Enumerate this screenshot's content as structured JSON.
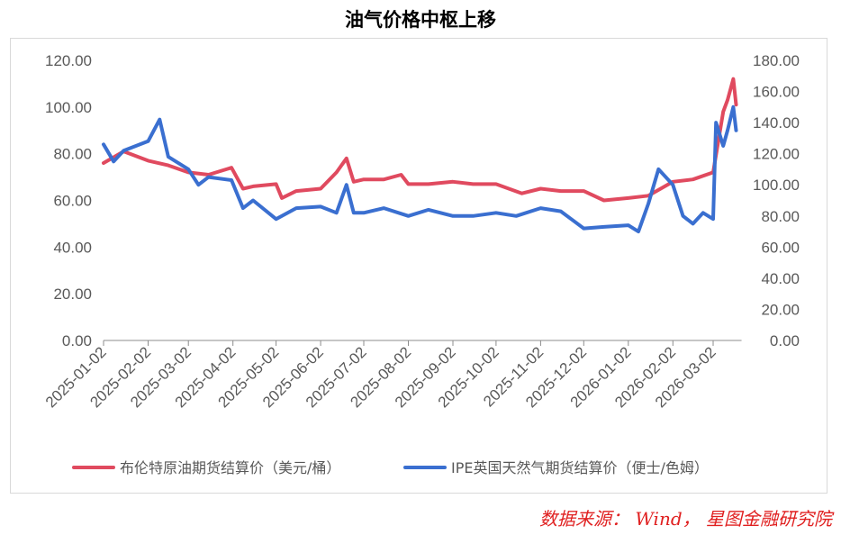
{
  "title": "油气价格中枢上移",
  "source_note": "数据来源： Wind， 星图金融研究院",
  "colors": {
    "series_1": "#e04a5f",
    "series_2": "#3a6fd0",
    "axis": "#8c8c8c",
    "text": "#595959"
  },
  "chart_data": {
    "type": "line",
    "title": "油气价格中枢上移",
    "x_tick_labels": [
      "2025-01-02",
      "2025-02-02",
      "2025-03-02",
      "2025-04-02",
      "2025-05-02",
      "2025-06-02",
      "2025-07-02",
      "2025-08-02",
      "2025-09-02",
      "2025-10-02",
      "2025-11-02",
      "2025-12-02",
      "2026-01-02",
      "2026-02-02",
      "2026-03-02"
    ],
    "y_left": {
      "ticks": [
        "0.00",
        "20.00",
        "40.00",
        "60.00",
        "80.00",
        "100.00",
        "120.00"
      ],
      "ylim": [
        0,
        120
      ]
    },
    "y_right": {
      "ticks": [
        "0.00",
        "20.00",
        "40.00",
        "60.00",
        "80.00",
        "100.00",
        "120.00",
        "140.00",
        "160.00",
        "180.00"
      ],
      "ylim": [
        0,
        180
      ]
    },
    "grid": false,
    "legend_position": "bottom",
    "series": [
      {
        "name": "布伦特原油期货结算价（美元/桶）",
        "axis": "left",
        "x": [
          "2025-01-02",
          "2025-01-16",
          "2025-02-02",
          "2025-02-16",
          "2025-03-02",
          "2025-03-16",
          "2025-04-01",
          "2025-04-09",
          "2025-04-16",
          "2025-05-02",
          "2025-05-06",
          "2025-05-16",
          "2025-06-02",
          "2025-06-13",
          "2025-06-20",
          "2025-06-25",
          "2025-07-02",
          "2025-07-16",
          "2025-07-28",
          "2025-08-02",
          "2025-08-16",
          "2025-09-02",
          "2025-09-16",
          "2025-10-02",
          "2025-10-20",
          "2025-11-02",
          "2025-11-16",
          "2025-12-02",
          "2025-12-16",
          "2026-01-02",
          "2026-01-16",
          "2026-02-02",
          "2026-02-16",
          "2026-03-02",
          "2026-03-09",
          "2026-03-12",
          "2026-03-16",
          "2026-03-18"
        ],
        "values": [
          76,
          81,
          77,
          75,
          72,
          71,
          74,
          65,
          66,
          67,
          61,
          64,
          65,
          72,
          78,
          68,
          69,
          69,
          71,
          67,
          67,
          68,
          67,
          67,
          63,
          65,
          64,
          64,
          60,
          61,
          62,
          68,
          69,
          72,
          98,
          103,
          112,
          101
        ]
      },
      {
        "name": "IPE英国天然气期货结算价（便士/色姆）",
        "axis": "right",
        "x": [
          "2025-01-02",
          "2025-01-09",
          "2025-01-16",
          "2025-02-02",
          "2025-02-10",
          "2025-02-16",
          "2025-03-02",
          "2025-03-09",
          "2025-03-16",
          "2025-04-01",
          "2025-04-09",
          "2025-04-16",
          "2025-05-02",
          "2025-05-16",
          "2025-06-02",
          "2025-06-13",
          "2025-06-20",
          "2025-06-25",
          "2025-07-02",
          "2025-07-16",
          "2025-08-02",
          "2025-08-16",
          "2025-09-02",
          "2025-09-16",
          "2025-10-02",
          "2025-10-16",
          "2025-11-02",
          "2025-11-16",
          "2025-12-02",
          "2025-12-16",
          "2026-01-02",
          "2026-01-09",
          "2026-01-16",
          "2026-01-23",
          "2026-02-02",
          "2026-02-09",
          "2026-02-16",
          "2026-02-23",
          "2026-03-02",
          "2026-03-04",
          "2026-03-09",
          "2026-03-12",
          "2026-03-16",
          "2026-03-18"
        ],
        "values": [
          126,
          115,
          122,
          128,
          142,
          118,
          110,
          100,
          105,
          103,
          85,
          90,
          78,
          85,
          86,
          82,
          100,
          82,
          82,
          85,
          80,
          84,
          80,
          80,
          82,
          80,
          85,
          83,
          72,
          73,
          74,
          70,
          88,
          110,
          100,
          80,
          75,
          82,
          78,
          140,
          125,
          135,
          150,
          135
        ]
      }
    ]
  }
}
